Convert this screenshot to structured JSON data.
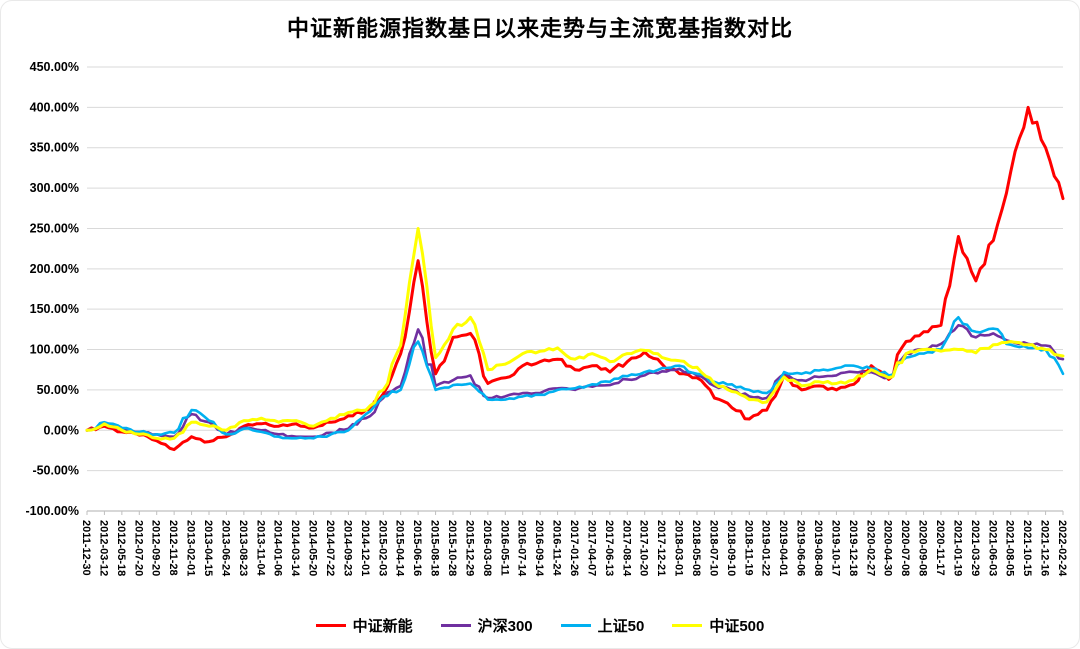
{
  "colors": {
    "background": "#FFFFFF",
    "grid": "#D9D9D9",
    "axis": "#BFBFBF",
    "text": "#000000"
  },
  "chart_data": {
    "type": "line",
    "title": "中证新能源指数基日以来走势与主流宽基指数对比",
    "xlabel": "",
    "ylabel": "",
    "ylim": [
      -100,
      450
    ],
    "grid": true,
    "legend_position": "bottom",
    "y_ticks": [
      450,
      400,
      350,
      300,
      250,
      200,
      150,
      100,
      50,
      0,
      -50,
      -100
    ],
    "y_tick_labels": [
      "450.00%",
      "400.00%",
      "350.00%",
      "300.00%",
      "250.00%",
      "200.00%",
      "150.00%",
      "100.00%",
      "50.00%",
      "0.00%",
      "-50.00%",
      "-100.00%"
    ],
    "x_labels": [
      "2011-12-30",
      "2012-03-12",
      "2012-05-18",
      "2012-07-20",
      "2012-09-20",
      "2012-11-28",
      "2013-02-01",
      "2013-04-15",
      "2013-06-24",
      "2013-08-23",
      "2013-11-04",
      "2014-01-06",
      "2014-03-14",
      "2014-05-20",
      "2014-07-22",
      "2014-09-23",
      "2014-12-01",
      "2015-02-03",
      "2015-04-14",
      "2015-06-16",
      "2015-08-18",
      "2015-10-28",
      "2015-12-29",
      "2016-03-08",
      "2016-05-11",
      "2016-07-14",
      "2016-09-14",
      "2016-11-24",
      "2017-01-26",
      "2017-04-07",
      "2017-06-13",
      "2017-08-14",
      "2017-10-20",
      "2017-12-21",
      "2018-03-01",
      "2018-05-08",
      "2018-07-10",
      "2018-09-10",
      "2018-11-19",
      "2019-01-22",
      "2019-04-01",
      "2019-06-06",
      "2019-08-08",
      "2019-10-17",
      "2019-12-18",
      "2020-02-27",
      "2020-04-30",
      "2020-07-08",
      "2020-09-08",
      "2020-11-17",
      "2021-01-19",
      "2021-03-29",
      "2021-06-03",
      "2021-08-05",
      "2021-10-15",
      "2021-12-16",
      "2022-02-24"
    ],
    "series": [
      {
        "name": "中证新能",
        "color": "#FF0000",
        "values": [
          0,
          5,
          -2,
          -6,
          -13,
          -24,
          -8,
          -14,
          -8,
          5,
          8,
          5,
          8,
          3,
          10,
          18,
          25,
          45,
          95,
          210,
          70,
          115,
          120,
          58,
          65,
          80,
          85,
          88,
          75,
          80,
          72,
          85,
          97,
          82,
          70,
          65,
          40,
          28,
          14,
          25,
          68,
          50,
          55,
          50,
          57,
          80,
          63,
          110,
          122,
          130,
          240,
          185,
          235,
          320,
          400,
          350,
          287
        ]
      },
      {
        "name": "沪深300",
        "color": "#7030A0",
        "values": [
          0,
          8,
          2,
          -2,
          -5,
          -8,
          20,
          10,
          -5,
          3,
          0,
          -5,
          -8,
          -8,
          -3,
          2,
          15,
          40,
          55,
          125,
          55,
          62,
          68,
          40,
          42,
          46,
          46,
          52,
          50,
          54,
          56,
          63,
          68,
          73,
          76,
          68,
          55,
          50,
          42,
          40,
          70,
          62,
          66,
          68,
          72,
          72,
          65,
          95,
          100,
          107,
          130,
          115,
          120,
          110,
          107,
          105,
          88
        ]
      },
      {
        "name": "上证50",
        "color": "#00B0F0",
        "values": [
          0,
          10,
          3,
          -2,
          -5,
          -3,
          25,
          12,
          -5,
          2,
          -2,
          -8,
          -10,
          -10,
          -5,
          0,
          20,
          42,
          50,
          110,
          50,
          56,
          58,
          38,
          38,
          42,
          44,
          50,
          52,
          57,
          60,
          67,
          72,
          77,
          80,
          70,
          60,
          57,
          50,
          46,
          72,
          70,
          74,
          77,
          80,
          76,
          68,
          90,
          95,
          100,
          140,
          122,
          126,
          106,
          102,
          100,
          70
        ]
      },
      {
        "name": "中证500",
        "color": "#FFFF00",
        "values": [
          0,
          8,
          0,
          -5,
          -10,
          -10,
          10,
          5,
          0,
          12,
          15,
          10,
          12,
          5,
          15,
          22,
          25,
          50,
          105,
          250,
          90,
          125,
          140,
          75,
          82,
          95,
          98,
          102,
          88,
          95,
          85,
          95,
          99,
          90,
          86,
          78,
          58,
          48,
          38,
          35,
          66,
          55,
          60,
          58,
          62,
          75,
          65,
          95,
          100,
          98,
          100,
          96,
          106,
          110,
          106,
          100,
          92
        ]
      }
    ]
  }
}
